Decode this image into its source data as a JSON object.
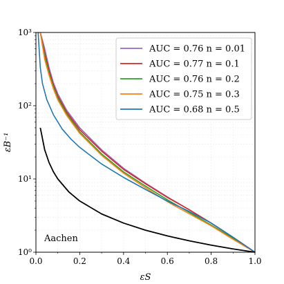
{
  "chart_data": {
    "type": "line",
    "xlabel": "εS",
    "ylabel": "εB⁻¹",
    "xlim": [
      0.0,
      1.0
    ],
    "ylim": [
      1,
      1000
    ],
    "yscale": "log",
    "grid": true,
    "legend_position": "top-right",
    "x_ticks": [
      "0.0",
      "0.2",
      "0.4",
      "0.6",
      "0.8",
      "1.0"
    ],
    "y_ticks": [
      "10⁰",
      "10¹",
      "10²",
      "10³"
    ],
    "annotation": "Aachen",
    "series": [
      {
        "name": "AUC = 0.76 n = 0.01",
        "color": "#9467bd",
        "x": [
          0.02,
          0.04,
          0.06,
          0.08,
          0.1,
          0.14,
          0.2,
          0.3,
          0.4,
          0.5,
          0.6,
          0.7,
          0.8,
          0.9,
          1.0
        ],
        "y": [
          1000,
          600,
          330,
          205,
          145,
          87,
          50,
          25,
          14,
          8.8,
          5.7,
          3.8,
          2.5,
          1.6,
          1.0
        ]
      },
      {
        "name": "AUC = 0.77 n = 0.1",
        "color": "#d62728",
        "x": [
          0.02,
          0.04,
          0.06,
          0.08,
          0.1,
          0.14,
          0.2,
          0.3,
          0.4,
          0.5,
          0.6,
          0.7,
          0.8,
          0.9,
          1.0
        ],
        "y": [
          1000,
          520,
          300,
          190,
          135,
          82,
          47,
          24,
          13.5,
          8.6,
          5.6,
          3.8,
          2.5,
          1.6,
          1.0
        ]
      },
      {
        "name": "AUC = 0.76 n = 0.2",
        "color": "#2ca02c",
        "x": [
          0.02,
          0.04,
          0.06,
          0.08,
          0.1,
          0.14,
          0.2,
          0.3,
          0.4,
          0.5,
          0.6,
          0.7,
          0.8,
          0.9,
          1.0
        ],
        "y": [
          1000,
          480,
          280,
          180,
          128,
          78,
          44,
          22,
          12.5,
          8.0,
          5.2,
          3.5,
          2.35,
          1.55,
          1.0
        ]
      },
      {
        "name": "AUC = 0.75 n = 0.3",
        "color": "#ff7f0e",
        "x": [
          0.02,
          0.04,
          0.06,
          0.08,
          0.1,
          0.14,
          0.2,
          0.3,
          0.4,
          0.5,
          0.6,
          0.7,
          0.8,
          0.9,
          1.0
        ],
        "y": [
          1000,
          430,
          260,
          170,
          120,
          74,
          42,
          21,
          12,
          7.6,
          4.9,
          3.35,
          2.3,
          1.5,
          1.0
        ]
      },
      {
        "name": "AUC = 0.68 n = 0.5",
        "color": "#1f77b4",
        "x": [
          0.01,
          0.02,
          0.03,
          0.05,
          0.08,
          0.12,
          0.16,
          0.2,
          0.3,
          0.4,
          0.5,
          0.6,
          0.7,
          0.8,
          0.9,
          1.0
        ],
        "y": [
          1000,
          330,
          200,
          120,
          75,
          48,
          35,
          27,
          16,
          10.5,
          7.2,
          5.0,
          3.6,
          2.5,
          1.6,
          1.0
        ]
      },
      {
        "name": "",
        "color": "#000000",
        "x": [
          0.02,
          0.04,
          0.06,
          0.08,
          0.1,
          0.15,
          0.2,
          0.3,
          0.4,
          0.5,
          0.6,
          0.7,
          0.8,
          0.9,
          1.0
        ],
        "y": [
          50,
          25,
          16.7,
          12.5,
          10,
          6.67,
          5,
          3.33,
          2.5,
          2.0,
          1.67,
          1.43,
          1.25,
          1.11,
          1.0
        ]
      }
    ]
  }
}
